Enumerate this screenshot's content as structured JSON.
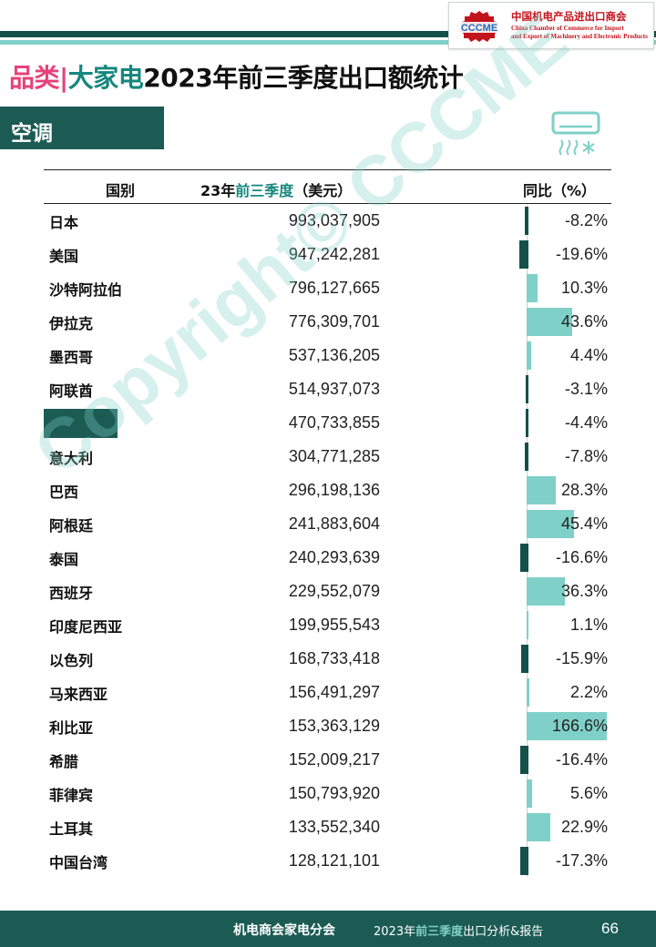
{
  "header": {
    "logo": {
      "badge_text": "CCCME",
      "cn_name": "中国机电产品进出口商会",
      "en_line1": "China Chamber of Commerce for Import",
      "en_line2": "and Export of Machinery and Electronic Products"
    },
    "title_category": "品类",
    "title_sep": "|",
    "title_appliance": "大家电",
    "title_rest": "2023年前三季度出口额统计"
  },
  "section": {
    "label": "空调",
    "icon": "air-conditioner-icon"
  },
  "table": {
    "headers": {
      "country": "国别",
      "value_prefix": "23年",
      "value_highlight": "前三季度",
      "value_suffix": "（美元）",
      "yoy": "同比（%）"
    }
  },
  "chart_data": {
    "type": "table",
    "columns": [
      "国别",
      "23年前三季度（美元）",
      "同比（%）"
    ],
    "yoy_bar_axis": "inline bars: positive light teal, negative dark teal",
    "rows": [
      {
        "country": "日本",
        "value": "993,037,905",
        "yoy": -8.2,
        "yoy_label": "-8.2%"
      },
      {
        "country": "美国",
        "value": "947,242,281",
        "yoy": -19.6,
        "yoy_label": "-19.6%"
      },
      {
        "country": "沙特阿拉伯",
        "value": "796,127,665",
        "yoy": 10.3,
        "yoy_label": "10.3%"
      },
      {
        "country": "伊拉克",
        "value": "776,309,701",
        "yoy": 43.6,
        "yoy_label": "43.6%"
      },
      {
        "country": "墨西哥",
        "value": "537,136,205",
        "yoy": 4.4,
        "yoy_label": "4.4%"
      },
      {
        "country": "阿联酋",
        "value": "514,937,073",
        "yoy": -3.1,
        "yoy_label": "-3.1%"
      },
      {
        "country": "",
        "value": "470,733,855",
        "yoy": -4.4,
        "yoy_label": "-4.4%",
        "redacted": true
      },
      {
        "country": "意大利",
        "value": "304,771,285",
        "yoy": -7.8,
        "yoy_label": "-7.8%"
      },
      {
        "country": "巴西",
        "value": "296,198,136",
        "yoy": 28.3,
        "yoy_label": "28.3%"
      },
      {
        "country": "阿根廷",
        "value": "241,883,604",
        "yoy": 45.4,
        "yoy_label": "45.4%"
      },
      {
        "country": "泰国",
        "value": "240,293,639",
        "yoy": -16.6,
        "yoy_label": "-16.6%"
      },
      {
        "country": "西班牙",
        "value": "229,552,079",
        "yoy": 36.3,
        "yoy_label": "36.3%"
      },
      {
        "country": "印度尼西亚",
        "value": "199,955,543",
        "yoy": 1.1,
        "yoy_label": "1.1%"
      },
      {
        "country": "以色列",
        "value": "168,733,418",
        "yoy": -15.9,
        "yoy_label": "-15.9%"
      },
      {
        "country": "马来西亚",
        "value": "156,491,297",
        "yoy": 2.2,
        "yoy_label": "2.2%"
      },
      {
        "country": "利比亚",
        "value": "153,363,129",
        "yoy": 166.6,
        "yoy_label": "166.6%"
      },
      {
        "country": "希腊",
        "value": "152,009,217",
        "yoy": -16.4,
        "yoy_label": "-16.4%"
      },
      {
        "country": "菲律宾",
        "value": "150,793,920",
        "yoy": 5.6,
        "yoy_label": "5.6%"
      },
      {
        "country": "土耳其",
        "value": "133,552,340",
        "yoy": 22.9,
        "yoy_label": "22.9%"
      },
      {
        "country": "中国台湾",
        "value": "128,121,101",
        "yoy": -17.3,
        "yoy_label": "-17.3%"
      }
    ]
  },
  "watermark": "Copyright© CCCME",
  "footer": {
    "org": "机电商会家电分会",
    "report_prefix": "2023年",
    "report_highlight": "前三季度",
    "report_suffix": "出口分析&报告",
    "page_number": "66"
  },
  "colors": {
    "dark_teal": "#1b5b54",
    "light_teal": "#7fd0c8",
    "accent_teal": "#16877e",
    "pink": "#e6427a",
    "logo_red": "#c3131c"
  }
}
